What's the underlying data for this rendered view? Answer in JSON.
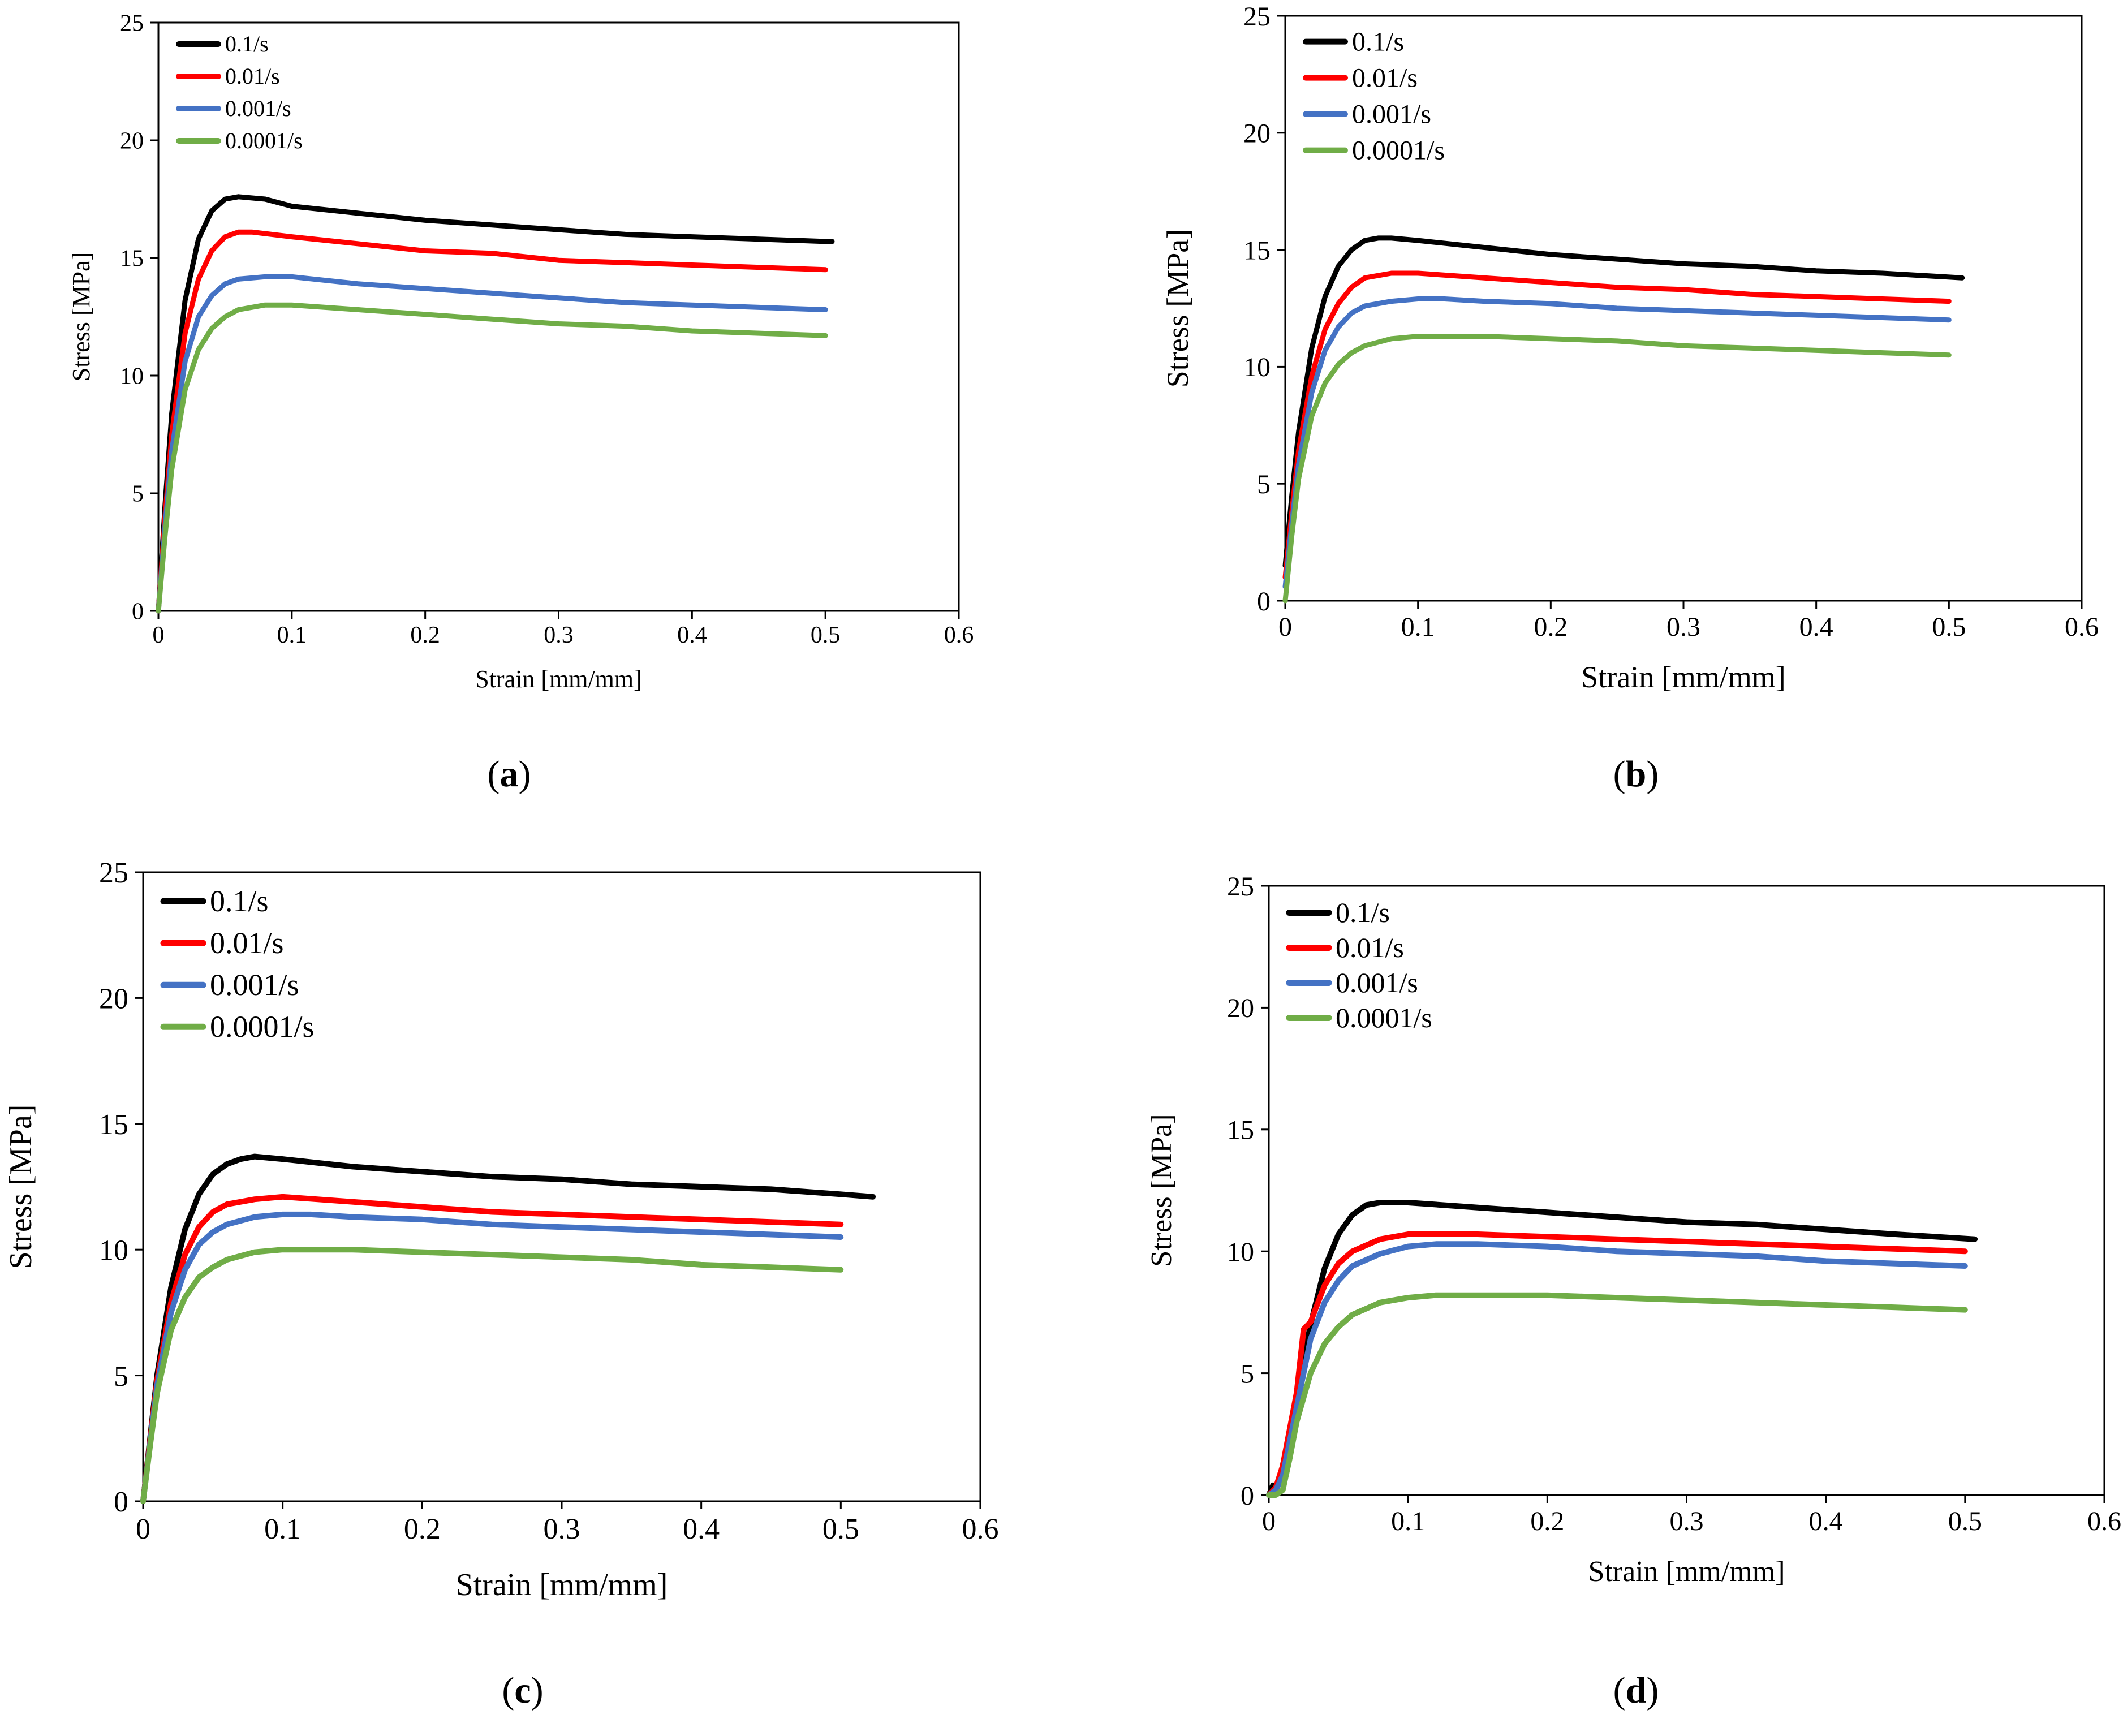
{
  "colors": {
    "black": "#000000",
    "red": "#ff0000",
    "blue": "#4472c4",
    "green": "#70ad47"
  },
  "chart_data": [
    {
      "panel_label": "a",
      "type": "line",
      "xlabel": "Strain [mm/mm]",
      "ylabel": "Stress [MPa]",
      "xlim": [
        0,
        0.6
      ],
      "ylim": [
        0,
        25
      ],
      "xticks": [
        0,
        0.1,
        0.2,
        0.3,
        0.4,
        0.5,
        0.6
      ],
      "xtick_labels": [
        "0",
        "0.1",
        "0.2",
        "0.3",
        "0.4",
        "0.5",
        "0.6"
      ],
      "yticks": [
        0,
        5,
        10,
        15,
        20,
        25
      ],
      "ytick_labels": [
        "0",
        "5",
        "10",
        "15",
        "20",
        "25"
      ],
      "legend_position": "top-left",
      "series": [
        {
          "name": "0.1/s",
          "color": "#000000",
          "x": [
            0,
            0.005,
            0.01,
            0.02,
            0.03,
            0.04,
            0.05,
            0.06,
            0.08,
            0.1,
            0.15,
            0.2,
            0.25,
            0.3,
            0.35,
            0.4,
            0.45,
            0.5,
            0.505
          ],
          "y": [
            0,
            4.5,
            8.4,
            13.2,
            15.8,
            17.0,
            17.5,
            17.6,
            17.5,
            17.2,
            16.9,
            16.6,
            16.4,
            16.2,
            16.0,
            15.9,
            15.8,
            15.7,
            15.7
          ]
        },
        {
          "name": "0.01/s",
          "color": "#ff0000",
          "x": [
            0,
            0.005,
            0.01,
            0.02,
            0.03,
            0.04,
            0.05,
            0.06,
            0.07,
            0.1,
            0.15,
            0.2,
            0.25,
            0.3,
            0.35,
            0.4,
            0.45,
            0.5
          ],
          "y": [
            0,
            4.0,
            7.5,
            11.8,
            14.1,
            15.3,
            15.9,
            16.1,
            16.1,
            15.9,
            15.6,
            15.3,
            15.2,
            14.9,
            14.8,
            14.7,
            14.6,
            14.5
          ]
        },
        {
          "name": "0.001/s",
          "color": "#4472c4",
          "x": [
            0,
            0.005,
            0.01,
            0.02,
            0.03,
            0.04,
            0.05,
            0.06,
            0.08,
            0.1,
            0.15,
            0.2,
            0.25,
            0.3,
            0.35,
            0.4,
            0.45,
            0.5
          ],
          "y": [
            0,
            3.6,
            6.8,
            10.6,
            12.5,
            13.4,
            13.9,
            14.1,
            14.2,
            14.2,
            13.9,
            13.7,
            13.5,
            13.3,
            13.1,
            13.0,
            12.9,
            12.8
          ]
        },
        {
          "name": "0.0001/s",
          "color": "#70ad47",
          "x": [
            0,
            0.005,
            0.01,
            0.02,
            0.03,
            0.04,
            0.05,
            0.06,
            0.08,
            0.1,
            0.15,
            0.2,
            0.25,
            0.3,
            0.35,
            0.4,
            0.45,
            0.5
          ],
          "y": [
            0,
            3.2,
            6.0,
            9.4,
            11.1,
            12.0,
            12.5,
            12.8,
            13.0,
            13.0,
            12.8,
            12.6,
            12.4,
            12.2,
            12.1,
            11.9,
            11.8,
            11.7
          ]
        }
      ]
    },
    {
      "panel_label": "b",
      "type": "line",
      "xlabel": "Strain [mm/mm]",
      "ylabel": "Stress [MPa]",
      "xlim": [
        0,
        0.6
      ],
      "ylim": [
        0,
        25
      ],
      "xticks": [
        0,
        0.1,
        0.2,
        0.3,
        0.4,
        0.5,
        0.6
      ],
      "xtick_labels": [
        "0",
        "0.1",
        "0.2",
        "0.3",
        "0.4",
        "0.5",
        "0.6"
      ],
      "yticks": [
        0,
        5,
        10,
        15,
        20,
        25
      ],
      "ytick_labels": [
        "0",
        "5",
        "10",
        "15",
        "20",
        "25"
      ],
      "legend_position": "top-left",
      "series": [
        {
          "name": "0.1/s",
          "color": "#000000",
          "x": [
            0,
            0.005,
            0.01,
            0.02,
            0.03,
            0.04,
            0.05,
            0.06,
            0.07,
            0.08,
            0.1,
            0.15,
            0.2,
            0.25,
            0.3,
            0.35,
            0.4,
            0.45,
            0.51
          ],
          "y": [
            1.5,
            4.5,
            7.2,
            10.8,
            13.0,
            14.3,
            15.0,
            15.4,
            15.5,
            15.5,
            15.4,
            15.1,
            14.8,
            14.6,
            14.4,
            14.3,
            14.1,
            14.0,
            13.8
          ]
        },
        {
          "name": "0.01/s",
          "color": "#ff0000",
          "x": [
            0,
            0.005,
            0.01,
            0.02,
            0.03,
            0.04,
            0.05,
            0.06,
            0.08,
            0.1,
            0.15,
            0.2,
            0.25,
            0.3,
            0.35,
            0.4,
            0.45,
            0.5
          ],
          "y": [
            1.0,
            3.8,
            6.4,
            9.6,
            11.6,
            12.7,
            13.4,
            13.8,
            14.0,
            14.0,
            13.8,
            13.6,
            13.4,
            13.3,
            13.1,
            13.0,
            12.9,
            12.8
          ]
        },
        {
          "name": "0.001/s",
          "color": "#4472c4",
          "x": [
            0,
            0.005,
            0.01,
            0.02,
            0.03,
            0.04,
            0.05,
            0.06,
            0.08,
            0.1,
            0.12,
            0.15,
            0.2,
            0.25,
            0.3,
            0.35,
            0.4,
            0.45,
            0.5
          ],
          "y": [
            0.6,
            3.3,
            5.8,
            8.9,
            10.7,
            11.7,
            12.3,
            12.6,
            12.8,
            12.9,
            12.9,
            12.8,
            12.7,
            12.5,
            12.4,
            12.3,
            12.2,
            12.1,
            12.0
          ]
        },
        {
          "name": "0.0001/s",
          "color": "#70ad47",
          "x": [
            0,
            0.005,
            0.01,
            0.02,
            0.03,
            0.04,
            0.05,
            0.06,
            0.08,
            0.1,
            0.12,
            0.15,
            0.2,
            0.25,
            0.3,
            0.35,
            0.4,
            0.45,
            0.5
          ],
          "y": [
            0,
            2.8,
            5.2,
            7.9,
            9.3,
            10.1,
            10.6,
            10.9,
            11.2,
            11.3,
            11.3,
            11.3,
            11.2,
            11.1,
            10.9,
            10.8,
            10.7,
            10.6,
            10.5
          ]
        }
      ]
    },
    {
      "panel_label": "c",
      "type": "line",
      "xlabel": "Strain [mm/mm]",
      "ylabel": "Stress [MPa]",
      "xlim": [
        0,
        0.6
      ],
      "ylim": [
        0,
        25
      ],
      "xticks": [
        0,
        0.1,
        0.2,
        0.3,
        0.4,
        0.5,
        0.6
      ],
      "xtick_labels": [
        "0",
        "0.1",
        "0.2",
        "0.3",
        "0.4",
        "0.5",
        "0.6"
      ],
      "yticks": [
        0,
        5,
        10,
        15,
        20,
        25
      ],
      "ytick_labels": [
        "0",
        "5",
        "10",
        "15",
        "20",
        "25"
      ],
      "legend_position": "top-left",
      "series": [
        {
          "name": "0.1/s",
          "color": "#000000",
          "x": [
            0,
            0.005,
            0.01,
            0.02,
            0.03,
            0.04,
            0.05,
            0.06,
            0.07,
            0.08,
            0.1,
            0.15,
            0.2,
            0.25,
            0.3,
            0.35,
            0.4,
            0.45,
            0.5,
            0.523
          ],
          "y": [
            0,
            2.5,
            5.0,
            8.5,
            10.8,
            12.2,
            13.0,
            13.4,
            13.6,
            13.7,
            13.6,
            13.3,
            13.1,
            12.9,
            12.8,
            12.6,
            12.5,
            12.4,
            12.2,
            12.1
          ]
        },
        {
          "name": "0.01/s",
          "color": "#ff0000",
          "x": [
            0,
            0.005,
            0.01,
            0.02,
            0.03,
            0.04,
            0.05,
            0.06,
            0.08,
            0.1,
            0.15,
            0.2,
            0.25,
            0.3,
            0.35,
            0.4,
            0.45,
            0.5
          ],
          "y": [
            0,
            2.4,
            4.8,
            7.9,
            9.8,
            10.9,
            11.5,
            11.8,
            12.0,
            12.1,
            11.9,
            11.7,
            11.5,
            11.4,
            11.3,
            11.2,
            11.1,
            11.0
          ]
        },
        {
          "name": "0.001/s",
          "color": "#4472c4",
          "x": [
            0,
            0.005,
            0.01,
            0.02,
            0.03,
            0.04,
            0.05,
            0.06,
            0.08,
            0.1,
            0.12,
            0.15,
            0.2,
            0.25,
            0.3,
            0.35,
            0.4,
            0.45,
            0.5
          ],
          "y": [
            0,
            2.3,
            4.6,
            7.5,
            9.2,
            10.2,
            10.7,
            11.0,
            11.3,
            11.4,
            11.4,
            11.3,
            11.2,
            11.0,
            10.9,
            10.8,
            10.7,
            10.6,
            10.5
          ]
        },
        {
          "name": "0.0001/s",
          "color": "#70ad47",
          "x": [
            0,
            0.005,
            0.01,
            0.02,
            0.03,
            0.04,
            0.05,
            0.06,
            0.08,
            0.1,
            0.12,
            0.15,
            0.2,
            0.25,
            0.3,
            0.35,
            0.4,
            0.45,
            0.5
          ],
          "y": [
            0,
            2.2,
            4.3,
            6.8,
            8.1,
            8.9,
            9.3,
            9.6,
            9.9,
            10.0,
            10.0,
            10.0,
            9.9,
            9.8,
            9.7,
            9.6,
            9.4,
            9.3,
            9.2
          ]
        }
      ]
    },
    {
      "panel_label": "d",
      "type": "line",
      "xlabel": "Strain [mm/mm]",
      "ylabel": "Stress [MPa]",
      "xlim": [
        0,
        0.6
      ],
      "ylim": [
        0,
        25
      ],
      "xticks": [
        0,
        0.1,
        0.2,
        0.3,
        0.4,
        0.5,
        0.6
      ],
      "xtick_labels": [
        "0",
        "0.1",
        "0.2",
        "0.3",
        "0.4",
        "0.5",
        "0.6"
      ],
      "yticks": [
        0,
        5,
        10,
        15,
        20,
        25
      ],
      "ytick_labels": [
        "0",
        "5",
        "10",
        "15",
        "20",
        "25"
      ],
      "legend_position": "top-left",
      "series": [
        {
          "name": "0.1/s",
          "color": "#000000",
          "x": [
            0,
            0.003,
            0.006,
            0.01,
            0.02,
            0.03,
            0.04,
            0.05,
            0.06,
            0.07,
            0.08,
            0.09,
            0.1,
            0.15,
            0.2,
            0.25,
            0.3,
            0.35,
            0.4,
            0.45,
            0.507
          ],
          "y": [
            0,
            0.4,
            0.3,
            1.2,
            4.0,
            7.0,
            9.3,
            10.7,
            11.5,
            11.9,
            12.0,
            12.0,
            12.0,
            11.8,
            11.6,
            11.4,
            11.2,
            11.1,
            10.9,
            10.7,
            10.5
          ]
        },
        {
          "name": "0.01/s",
          "color": "#ff0000",
          "x": [
            0,
            0.005,
            0.01,
            0.02,
            0.025,
            0.03,
            0.04,
            0.05,
            0.06,
            0.08,
            0.1,
            0.12,
            0.15,
            0.2,
            0.25,
            0.3,
            0.35,
            0.4,
            0.45,
            0.5
          ],
          "y": [
            0,
            0.3,
            1.2,
            4.2,
            6.8,
            7.1,
            8.6,
            9.5,
            10.0,
            10.5,
            10.7,
            10.7,
            10.7,
            10.6,
            10.5,
            10.4,
            10.3,
            10.2,
            10.1,
            10.0
          ]
        },
        {
          "name": "0.001/s",
          "color": "#4472c4",
          "x": [
            0,
            0.005,
            0.01,
            0.02,
            0.03,
            0.04,
            0.05,
            0.06,
            0.08,
            0.1,
            0.12,
            0.15,
            0.2,
            0.25,
            0.3,
            0.35,
            0.4,
            0.45,
            0.5
          ],
          "y": [
            0,
            0.2,
            0.8,
            3.6,
            6.4,
            7.9,
            8.8,
            9.4,
            9.9,
            10.2,
            10.3,
            10.3,
            10.2,
            10.0,
            9.9,
            9.8,
            9.6,
            9.5,
            9.4
          ]
        },
        {
          "name": "0.0001/s",
          "color": "#70ad47",
          "x": [
            0,
            0.005,
            0.01,
            0.015,
            0.02,
            0.03,
            0.04,
            0.05,
            0.06,
            0.08,
            0.1,
            0.12,
            0.15,
            0.2,
            0.25,
            0.3,
            0.35,
            0.4,
            0.45,
            0.5
          ],
          "y": [
            0,
            0,
            0.2,
            1.5,
            3.0,
            5.0,
            6.2,
            6.9,
            7.4,
            7.9,
            8.1,
            8.2,
            8.2,
            8.2,
            8.1,
            8.0,
            7.9,
            7.8,
            7.7,
            7.6
          ]
        }
      ]
    }
  ]
}
